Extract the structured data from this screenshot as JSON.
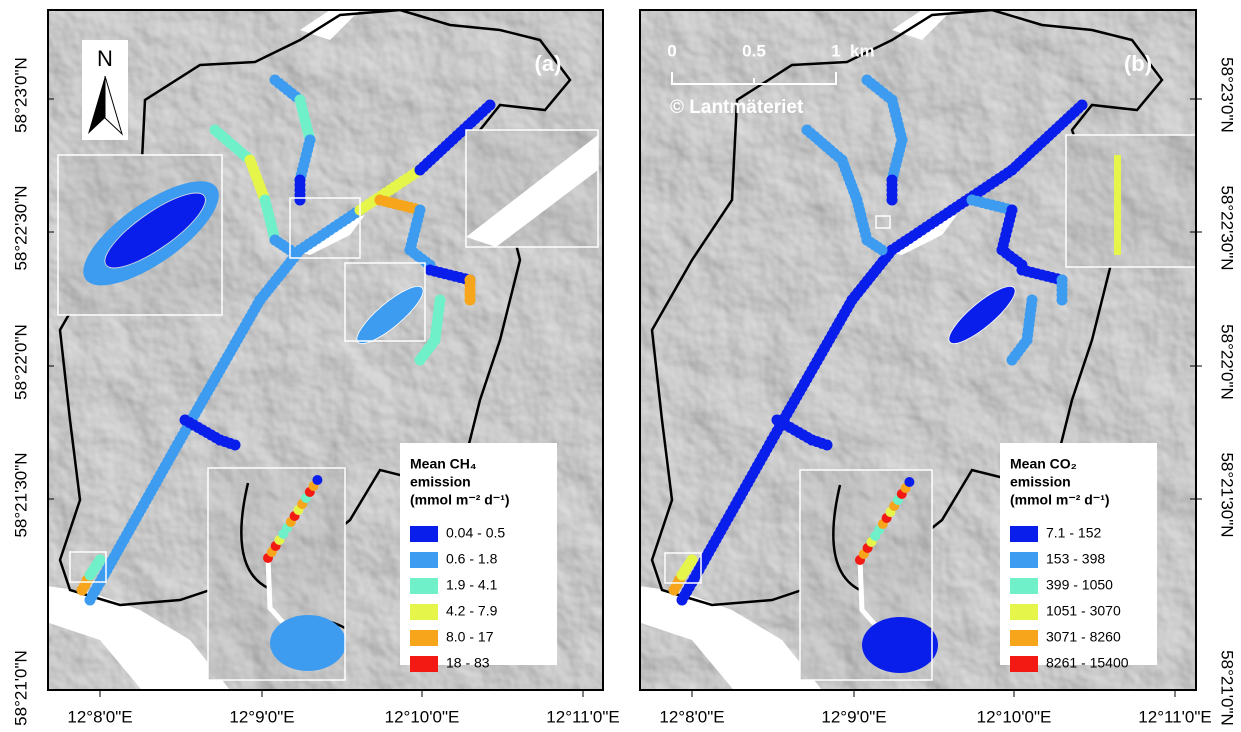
{
  "latitude_labels": [
    "58°23'0\"N",
    "58°22'30\"N",
    "58°22'0\"N",
    "58°21'30\"N",
    "58°21'0\"N"
  ],
  "longitude_labels": [
    "12°8'0\"E",
    "12°9'0\"E",
    "12°10'0\"E",
    "12°11'0\"E"
  ],
  "north_arrow": "N",
  "panels": [
    {
      "label": "(a)",
      "legend": {
        "title": [
          "Mean CH₄",
          "emission",
          "(mmol m⁻² d⁻¹)"
        ],
        "classes": [
          {
            "label": "0.04 - 0.5",
            "color": "#0a1eeb"
          },
          {
            "label": "0.6 - 1.8",
            "color": "#3e9cf0"
          },
          {
            "label": "1.9 - 4.1",
            "color": "#6ff0c8"
          },
          {
            "label": "4.2 - 7.9",
            "color": "#e6f54a"
          },
          {
            "label": "8.0 - 17",
            "color": "#f7a51a"
          },
          {
            "label": "18 - 83",
            "color": "#f21a12"
          }
        ]
      }
    },
    {
      "label": "(b)",
      "scale_bar": {
        "ticks": [
          "0",
          "0.5",
          "1"
        ],
        "unit": "km"
      },
      "copyright": "© Lantmäteriet",
      "legend": {
        "title": [
          "Mean CO₂",
          "emission",
          "(mmol m⁻² d⁻¹)"
        ],
        "classes": [
          {
            "label": "7.1 - 152",
            "color": "#0a1eeb"
          },
          {
            "label": "153 - 398",
            "color": "#3e9cf0"
          },
          {
            "label": "399 - 1050",
            "color": "#6ff0c8"
          },
          {
            "label": "1051 - 3070",
            "color": "#e6f54a"
          },
          {
            "label": "3071 - 8260",
            "color": "#f7a51a"
          },
          {
            "label": "8261 - 15400",
            "color": "#f21a12"
          }
        ]
      }
    }
  ]
}
